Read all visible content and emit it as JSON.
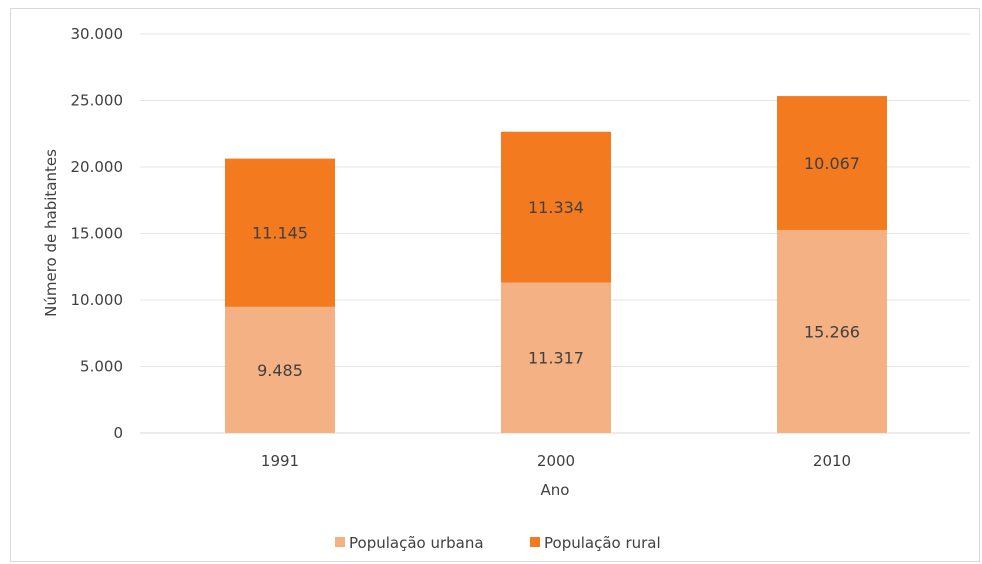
{
  "chart_data": {
    "type": "bar",
    "stacked": true,
    "categories": [
      "1991",
      "2000",
      "2010"
    ],
    "series": [
      {
        "name": "População urbana",
        "values": [
          9485,
          11317,
          15266
        ],
        "labels": [
          "9.485",
          "11.317",
          "15.266"
        ],
        "color": "#f4b183"
      },
      {
        "name": "População rural",
        "values": [
          11145,
          11334,
          10067
        ],
        "labels": [
          "11.145",
          "11.334",
          "10.067"
        ],
        "color": "#f47a20"
      }
    ],
    "xlabel": "Ano",
    "ylabel": "Número de habitantes",
    "ylim": [
      0,
      30000
    ],
    "yticks": [
      0,
      5000,
      10000,
      15000,
      20000,
      25000,
      30000
    ],
    "ytick_labels": [
      "0",
      "5.000",
      "10.000",
      "15.000",
      "20.000",
      "25.000",
      "30.000"
    ],
    "grid": true,
    "legend_position": "bottom",
    "gridline_color": "#e6e6e6",
    "axis_color": "#d9d9d9"
  }
}
